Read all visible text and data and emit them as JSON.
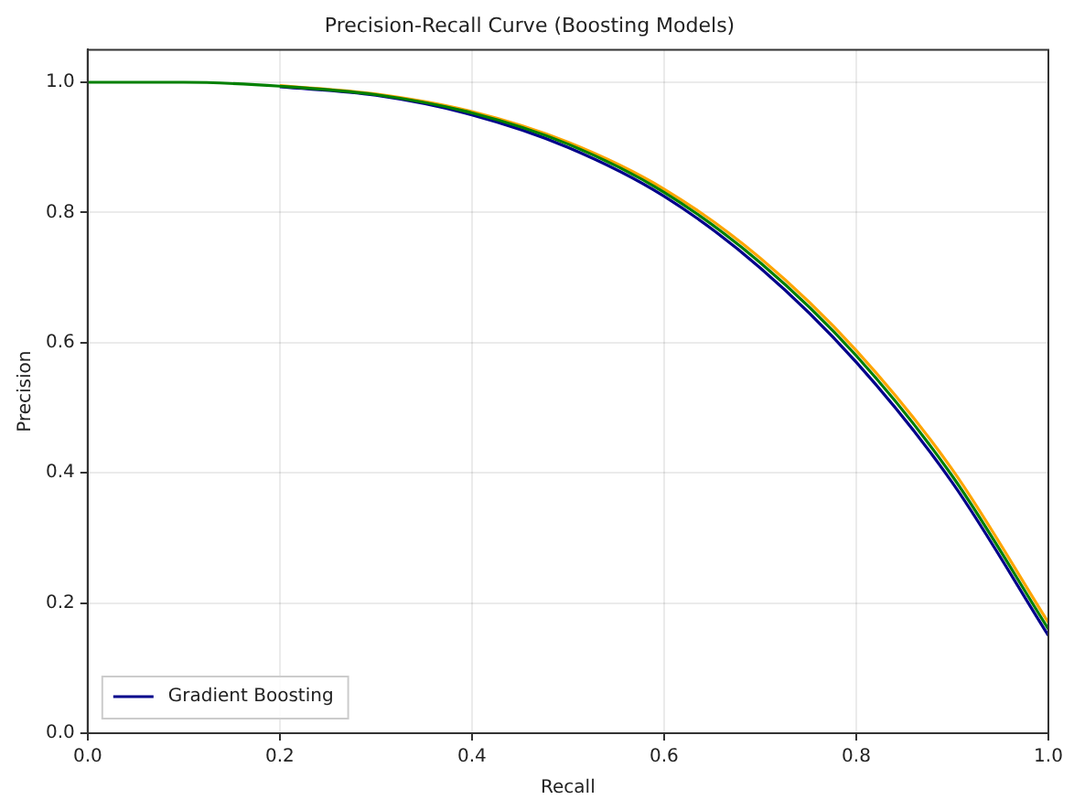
{
  "chart_data": {
    "type": "line",
    "title": "Precision-Recall Curve (Boosting Models)",
    "xlabel": "Recall",
    "ylabel": "Precision",
    "x": [
      0,
      0.1,
      0.2,
      0.3,
      0.4,
      0.5,
      0.6,
      0.7,
      0.8,
      0.9,
      1.0
    ],
    "series": [
      {
        "name": "Gradient Boosting",
        "color": "#00008b",
        "values": [
          null,
          null,
          0.993,
          0.98,
          0.95,
          0.9,
          0.825,
          0.715,
          0.57,
          0.385,
          0.15
        ]
      },
      {
        "color": "#ffa500",
        "values": [
          null,
          null,
          0.995,
          0.982,
          0.955,
          0.908,
          0.836,
          0.73,
          0.588,
          0.405,
          0.17
        ]
      },
      {
        "color": "#008000",
        "values": [
          1,
          1,
          0.994,
          0.981,
          0.953,
          0.905,
          0.831,
          0.723,
          0.58,
          0.395,
          0.16
        ]
      }
    ],
    "xlim": [
      0,
      1
    ],
    "xticks": [
      {
        "value": 0,
        "label": "0.0"
      },
      {
        "value": 0.2,
        "label": "0.2"
      },
      {
        "value": 0.4,
        "label": "0.4"
      },
      {
        "value": 0.6,
        "label": "0.6"
      },
      {
        "value": 0.8,
        "label": "0.8"
      },
      {
        "value": 1,
        "label": "1.0"
      }
    ],
    "ylim": [
      0,
      1.05
    ],
    "yticks": [
      {
        "value": 0,
        "label": "0.0"
      },
      {
        "value": 0.2,
        "label": "0.2"
      },
      {
        "value": 0.4,
        "label": "0.4"
      },
      {
        "value": 0.6,
        "label": "0.6"
      },
      {
        "value": 0.8,
        "label": "0.8"
      },
      {
        "value": 1,
        "label": "1.0"
      }
    ],
    "grid": true,
    "legend": "bottom left",
    "marker": "none",
    "line_style": "solid"
  }
}
